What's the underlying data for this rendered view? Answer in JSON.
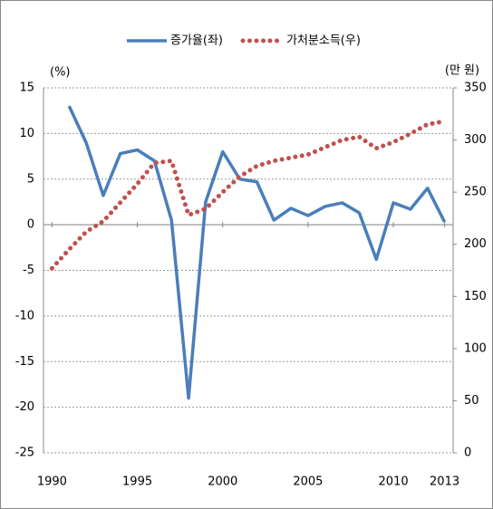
{
  "chart_data": {
    "type": "line",
    "y_label": "(%)",
    "y2_label": "(만 원)",
    "x": [
      1990,
      1991,
      1992,
      1993,
      1994,
      1995,
      1996,
      1997,
      1998,
      1999,
      2000,
      2001,
      2002,
      2003,
      2004,
      2005,
      2006,
      2007,
      2008,
      2009,
      2010,
      2011,
      2012,
      2013
    ],
    "series": [
      {
        "name": "증가율(좌)",
        "color": "#4a7ebb",
        "style": "solid",
        "values": [
          null,
          13,
          9,
          3.2,
          7.8,
          8.2,
          7,
          0.5,
          -19,
          2.5,
          8,
          5,
          4.7,
          0.5,
          1.8,
          1,
          2,
          2.4,
          1.3,
          -3.8,
          2.4,
          1.7,
          4,
          0.3
        ]
      },
      {
        "name": "가처분소득(우)",
        "color": "#c0504d",
        "style": "dotted",
        "axis": "y2",
        "values": [
          177,
          195,
          212,
          222,
          240,
          258,
          278,
          280,
          228,
          234,
          250,
          265,
          275,
          280,
          283,
          286,
          293,
          300,
          303,
          292,
          298,
          306,
          315,
          318
        ]
      }
    ],
    "xlim": [
      1989.5,
      2013.5
    ],
    "xticks": [
      1990,
      1995,
      2000,
      2005,
      2010,
      2013
    ],
    "ylim": [
      -25,
      15
    ],
    "yticks": [
      -25,
      -20,
      -15,
      -10,
      -5,
      0,
      5,
      10,
      15
    ],
    "y2lim": [
      0,
      350
    ],
    "y2ticks": [
      0,
      50,
      100,
      150,
      200,
      250,
      300,
      350
    ],
    "grid": true,
    "legend": "top"
  }
}
